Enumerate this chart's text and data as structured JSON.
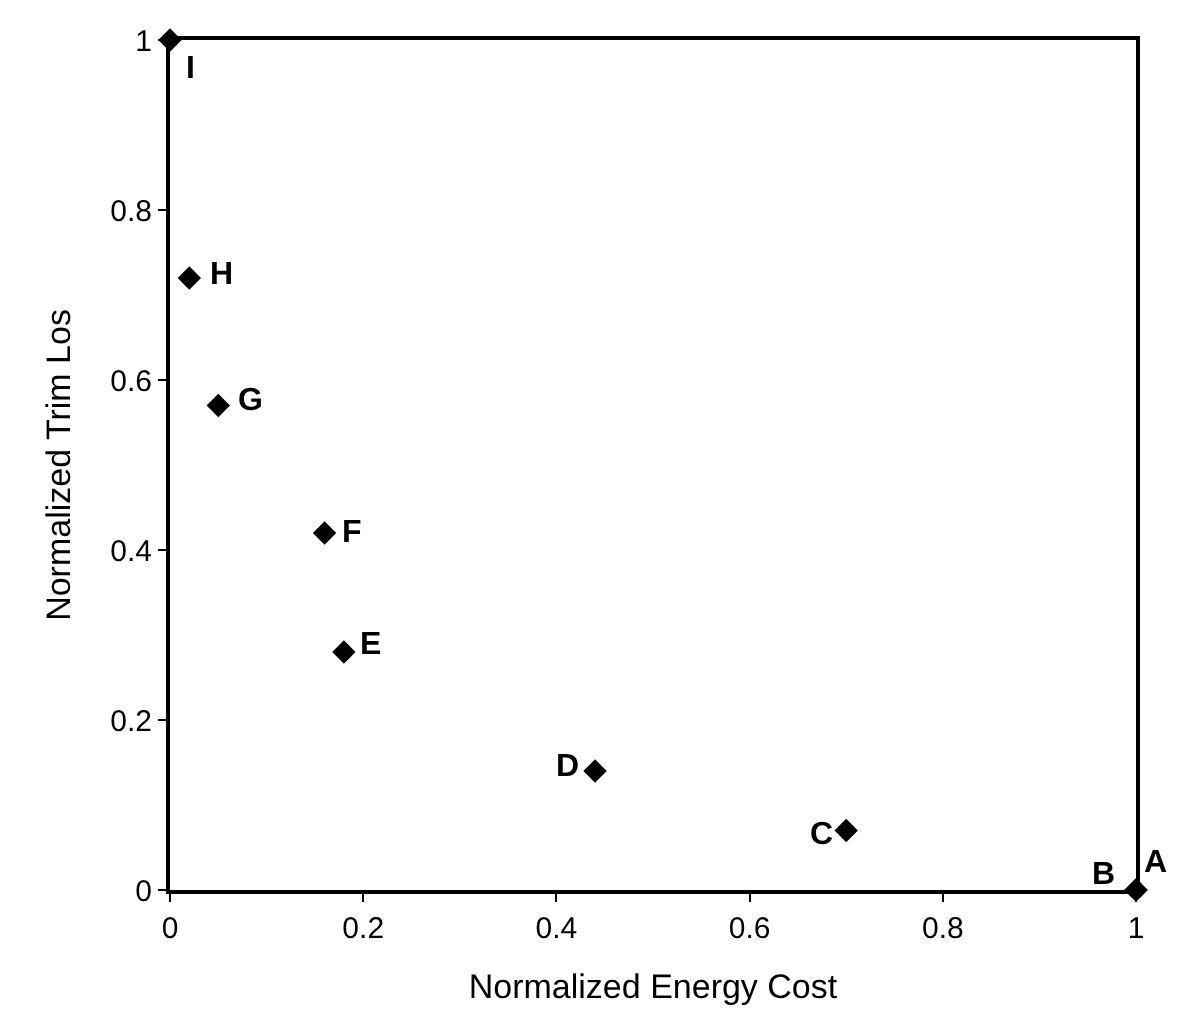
{
  "chart_data": {
    "type": "scatter",
    "xlabel": "Normalized Energy Cost",
    "ylabel": "Normalized Trim Los",
    "x": [
      1,
      1,
      0.7,
      0.44,
      0.18,
      0.16,
      0.05,
      0.02,
      0
    ],
    "values": [
      0,
      0,
      0.07,
      0.14,
      0.28,
      0.42,
      0.57,
      0.72,
      1
    ],
    "color": "#000000",
    "marker": "diamond",
    "grid": false,
    "xlim": [
      0,
      1
    ],
    "ylim": [
      0,
      1
    ],
    "xticks": [
      0,
      0.2,
      0.4,
      0.6,
      0.8,
      1
    ],
    "yticks": [
      0,
      0.2,
      0.4,
      0.6,
      0.8,
      1
    ],
    "annotations": [
      {
        "text": "A",
        "x": 1,
        "y": 0
      },
      {
        "text": "B",
        "x": 1,
        "y": 0
      },
      {
        "text": "C",
        "x": 0.7,
        "y": 0.07
      },
      {
        "text": "D",
        "x": 0.44,
        "y": 0.14
      },
      {
        "text": "E",
        "x": 0.18,
        "y": 0.28
      },
      {
        "text": "F",
        "x": 0.16,
        "y": 0.42
      },
      {
        "text": "G",
        "x": 0.05,
        "y": 0.57
      },
      {
        "text": "H",
        "x": 0.02,
        "y": 0.72
      },
      {
        "text": "I",
        "x": 0,
        "y": 1
      }
    ]
  }
}
